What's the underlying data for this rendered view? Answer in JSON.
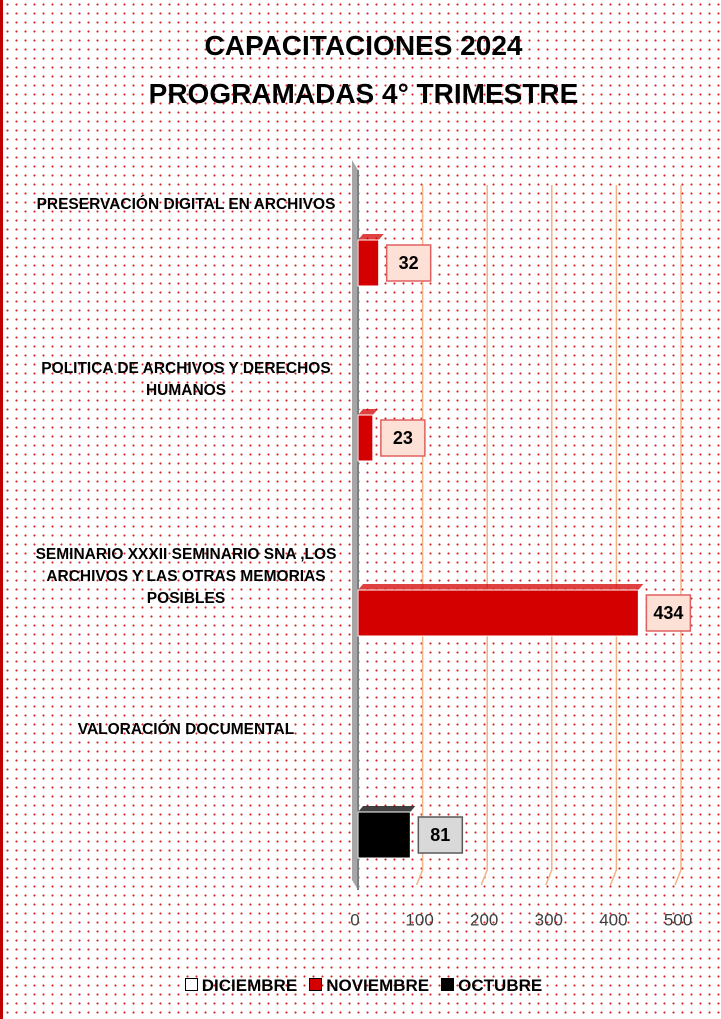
{
  "chart_data": {
    "type": "bar",
    "orientation": "horizontal",
    "title": "CAPACITACIONES 2024",
    "subtitle": "PROGRAMADAS 4° TRIMESTRE",
    "categories": [
      "PRESERVACIÓN DIGITAL EN ARCHIVOS",
      "POLITICA DE ARCHIVOS Y DERECHOS HUMANOS",
      "SEMINARIO XXXII SEMINARIO SNA ,LOS ARCHIVOS  Y LAS OTRAS MEMORIAS POSIBLES",
      "VALORACIÓN DOCUMENTAL"
    ],
    "series": [
      {
        "name": "DICIEMBRE",
        "color": "#ffffff",
        "values": [
          null,
          null,
          null,
          null
        ]
      },
      {
        "name": "NOVIEMBRE",
        "color": "#d40000",
        "values": [
          32,
          23,
          434,
          null
        ]
      },
      {
        "name": "OCTUBRE",
        "color": "#000000",
        "values": [
          null,
          null,
          null,
          81
        ]
      }
    ],
    "xlim": [
      0,
      500
    ],
    "xticks": [
      0,
      100,
      200,
      300,
      400,
      500
    ],
    "grid": true,
    "legend": "bottom"
  }
}
